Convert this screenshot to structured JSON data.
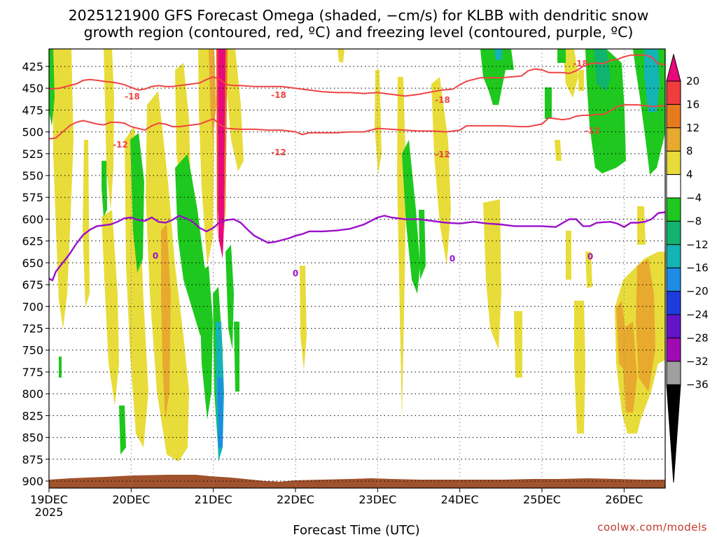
{
  "chart_data": {
    "type": "heatmap",
    "title_line1": "2025121900 GFS Forecast Omega (shaded, −cm/s) for KLBB with dendritic snow",
    "title_line2": "growth region (contoured, red, ºC) and freezing level (contoured, purple, ºC)",
    "xlabel": "Forecast Time (UTC)",
    "credit": "coolwx.com/models",
    "y_ticks": [
      "425",
      "450",
      "475",
      "500",
      "525",
      "550",
      "575",
      "600",
      "625",
      "650",
      "675",
      "700",
      "725",
      "750",
      "775",
      "800",
      "825",
      "850",
      "875",
      "900"
    ],
    "y_ticks_values": [
      425,
      450,
      475,
      500,
      525,
      550,
      575,
      600,
      625,
      650,
      675,
      700,
      725,
      750,
      775,
      800,
      825,
      850,
      875,
      900
    ],
    "ylim": [
      405,
      908
    ],
    "x_ticks": [
      {
        "label": "19DEC",
        "sub": "2025",
        "t": 0
      },
      {
        "label": "20DEC",
        "t": 24
      },
      {
        "label": "21DEC",
        "t": 48
      },
      {
        "label": "22DEC",
        "t": 72
      },
      {
        "label": "23DEC",
        "t": 96
      },
      {
        "label": "24DEC",
        "t": 120
      },
      {
        "label": "25DEC",
        "t": 144
      },
      {
        "label": "26DEC",
        "t": 168
      }
    ],
    "xlim_hours": [
      0,
      180
    ],
    "colorbar": {
      "labels": [
        "20",
        "16",
        "12",
        "8",
        "4",
        "−4",
        "−8",
        "−12",
        "−16",
        "−20",
        "−24",
        "−28",
        "−32",
        "−36"
      ],
      "colors": [
        "#e8097a",
        "#f03c3c",
        "#e87a1e",
        "#e8aa2e",
        "#e8dc3a",
        "#ffffff",
        "#1ec81e",
        "#10b46e",
        "#14b4b4",
        "#1e8ce6",
        "#1e3cdc",
        "#6414c8",
        "#a00ab4",
        "#a0a0a0"
      ]
    },
    "contour_labels_red": [
      "-18",
      "-18",
      "-18",
      "-18",
      "-12",
      "-12",
      "-12",
      "-12"
    ],
    "contour_labels_purple": [
      "0",
      "0",
      "0",
      "0"
    ],
    "red_minus18_level": [
      [
        0,
        451
      ],
      [
        3,
        450
      ],
      [
        6,
        447
      ],
      [
        8,
        445
      ],
      [
        10,
        441
      ],
      [
        12,
        440
      ],
      [
        14,
        441
      ],
      [
        16,
        442
      ],
      [
        18,
        443
      ],
      [
        20,
        444
      ],
      [
        22,
        446
      ],
      [
        24,
        449
      ],
      [
        26,
        452
      ],
      [
        28,
        451
      ],
      [
        30,
        448
      ],
      [
        32,
        447
      ],
      [
        34,
        448
      ],
      [
        36,
        448
      ],
      [
        38,
        447
      ],
      [
        40,
        446
      ],
      [
        42,
        445
      ],
      [
        44,
        444
      ],
      [
        46,
        440
      ],
      [
        48,
        437
      ],
      [
        50,
        440
      ],
      [
        52,
        446
      ],
      [
        54,
        447
      ],
      [
        56,
        447
      ],
      [
        60,
        448
      ],
      [
        64,
        448
      ],
      [
        68,
        448
      ],
      [
        72,
        450
      ],
      [
        76,
        452
      ],
      [
        80,
        454
      ],
      [
        84,
        455
      ],
      [
        88,
        455
      ],
      [
        92,
        456
      ],
      [
        96,
        455
      ],
      [
        100,
        457
      ],
      [
        104,
        459
      ],
      [
        108,
        457
      ],
      [
        112,
        454
      ],
      [
        115,
        452
      ],
      [
        118,
        451
      ],
      [
        120,
        446
      ],
      [
        122,
        442
      ],
      [
        124,
        440
      ],
      [
        126,
        438
      ],
      [
        128,
        438
      ],
      [
        132,
        438
      ],
      [
        135,
        437
      ],
      [
        138,
        436
      ],
      [
        140,
        430
      ],
      [
        142,
        428
      ],
      [
        144,
        429
      ],
      [
        146,
        432
      ],
      [
        148,
        432
      ],
      [
        150,
        432
      ],
      [
        152,
        433
      ],
      [
        154,
        430
      ],
      [
        156,
        425
      ],
      [
        158,
        422
      ],
      [
        160,
        421
      ],
      [
        162,
        422
      ],
      [
        164,
        418
      ],
      [
        166,
        417
      ],
      [
        168,
        414
      ],
      [
        170,
        412
      ],
      [
        174,
        412
      ],
      [
        176,
        414
      ],
      [
        178,
        422
      ],
      [
        180,
        423
      ]
    ],
    "red_minus12_level": [
      [
        0,
        508
      ],
      [
        2,
        507
      ],
      [
        4,
        500
      ],
      [
        6,
        493
      ],
      [
        8,
        489
      ],
      [
        10,
        487
      ],
      [
        12,
        489
      ],
      [
        14,
        491
      ],
      [
        16,
        492
      ],
      [
        18,
        489
      ],
      [
        20,
        489
      ],
      [
        22,
        490
      ],
      [
        24,
        494
      ],
      [
        26,
        496
      ],
      [
        28,
        498
      ],
      [
        30,
        493
      ],
      [
        32,
        490
      ],
      [
        34,
        491
      ],
      [
        36,
        494
      ],
      [
        38,
        494
      ],
      [
        40,
        493
      ],
      [
        42,
        492
      ],
      [
        44,
        491
      ],
      [
        46,
        488
      ],
      [
        48,
        485
      ],
      [
        50,
        492
      ],
      [
        52,
        496
      ],
      [
        56,
        497
      ],
      [
        60,
        497
      ],
      [
        64,
        498
      ],
      [
        68,
        498
      ],
      [
        72,
        500
      ],
      [
        74,
        503
      ],
      [
        76,
        501
      ],
      [
        80,
        501
      ],
      [
        84,
        501
      ],
      [
        88,
        500
      ],
      [
        92,
        500
      ],
      [
        96,
        496
      ],
      [
        100,
        497
      ],
      [
        104,
        498
      ],
      [
        108,
        499
      ],
      [
        112,
        499
      ],
      [
        116,
        500
      ],
      [
        120,
        498
      ],
      [
        122,
        493
      ],
      [
        126,
        493
      ],
      [
        132,
        493
      ],
      [
        138,
        494
      ],
      [
        140,
        494
      ],
      [
        144,
        491
      ],
      [
        146,
        484
      ],
      [
        150,
        486
      ],
      [
        152,
        485
      ],
      [
        154,
        482
      ],
      [
        156,
        481
      ],
      [
        158,
        481
      ],
      [
        160,
        480
      ],
      [
        162,
        480
      ],
      [
        164,
        476
      ],
      [
        166,
        471
      ],
      [
        168,
        469
      ],
      [
        172,
        469
      ],
      [
        176,
        471
      ],
      [
        180,
        470
      ]
    ],
    "purple_zero_level": [
      [
        0,
        668
      ],
      [
        1,
        670
      ],
      [
        2,
        660
      ],
      [
        4,
        650
      ],
      [
        6,
        640
      ],
      [
        8,
        628
      ],
      [
        10,
        618
      ],
      [
        12,
        612
      ],
      [
        14,
        608
      ],
      [
        16,
        607
      ],
      [
        18,
        606
      ],
      [
        20,
        603
      ],
      [
        22,
        599
      ],
      [
        24,
        598
      ],
      [
        26,
        601
      ],
      [
        28,
        602
      ],
      [
        30,
        598
      ],
      [
        32,
        603
      ],
      [
        34,
        604
      ],
      [
        36,
        601
      ],
      [
        38,
        596
      ],
      [
        40,
        599
      ],
      [
        42,
        603
      ],
      [
        44,
        610
      ],
      [
        46,
        614
      ],
      [
        48,
        610
      ],
      [
        50,
        603
      ],
      [
        52,
        601
      ],
      [
        54,
        600
      ],
      [
        56,
        604
      ],
      [
        58,
        612
      ],
      [
        60,
        619
      ],
      [
        62,
        623
      ],
      [
        64,
        627
      ],
      [
        66,
        626
      ],
      [
        68,
        624
      ],
      [
        70,
        622
      ],
      [
        72,
        619
      ],
      [
        74,
        617
      ],
      [
        76,
        614
      ],
      [
        80,
        614
      ],
      [
        84,
        613
      ],
      [
        88,
        611
      ],
      [
        92,
        606
      ],
      [
        94,
        602
      ],
      [
        96,
        598
      ],
      [
        98,
        596
      ],
      [
        100,
        598
      ],
      [
        104,
        600
      ],
      [
        108,
        600
      ],
      [
        112,
        602
      ],
      [
        116,
        604
      ],
      [
        120,
        605
      ],
      [
        124,
        603
      ],
      [
        128,
        605
      ],
      [
        132,
        606
      ],
      [
        136,
        608
      ],
      [
        140,
        608
      ],
      [
        144,
        608
      ],
      [
        148,
        609
      ],
      [
        152,
        600
      ],
      [
        154,
        600
      ],
      [
        156,
        608
      ],
      [
        158,
        608
      ],
      [
        160,
        604
      ],
      [
        164,
        603
      ],
      [
        166,
        605
      ],
      [
        168,
        609
      ],
      [
        170,
        604
      ],
      [
        172,
        604
      ],
      [
        174,
        603
      ],
      [
        176,
        600
      ],
      [
        178,
        593
      ],
      [
        180,
        592
      ]
    ]
  }
}
